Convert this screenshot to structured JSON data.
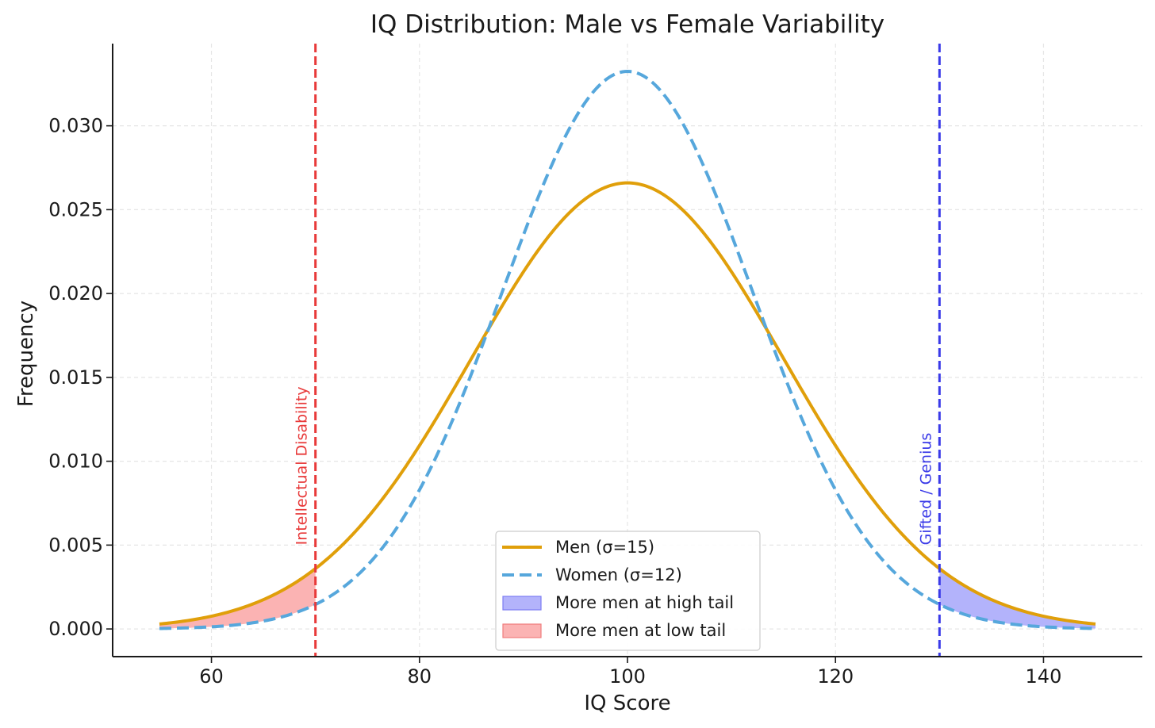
{
  "chart_data": {
    "type": "line",
    "title": "IQ Distribution: Male vs Female Variability",
    "xlabel": "IQ Score",
    "ylabel": "Frequency",
    "xlim": [
      50.5,
      149.5
    ],
    "ylim": [
      -0.00165,
      0.0349
    ],
    "x_range": [
      55,
      145
    ],
    "xticks": [
      60,
      80,
      100,
      120,
      140
    ],
    "xtick_labels": [
      "60",
      "80",
      "100",
      "120",
      "140"
    ],
    "yticks": [
      0.0,
      0.005,
      0.01,
      0.015,
      0.02,
      0.025,
      0.03
    ],
    "ytick_labels": [
      "0.000",
      "0.005",
      "0.010",
      "0.015",
      "0.020",
      "0.025",
      "0.030"
    ],
    "grid": true,
    "series": [
      {
        "name": "Men (σ=15)",
        "distribution": "normal",
        "mean": 100,
        "std": 15,
        "color": "#E09F0A",
        "style": "solid"
      },
      {
        "name": "Women (σ=12)",
        "distribution": "normal",
        "mean": 100,
        "std": 12,
        "color": "#56A7DC",
        "style": "dashed"
      }
    ],
    "shaded_regions": [
      {
        "label": "More men at high tail",
        "from": 130,
        "to": 145,
        "color": "#b3b3fb",
        "edge_color": "#7d7df2"
      },
      {
        "label": "More men at low tail",
        "from": 55,
        "to": 70,
        "color": "#fbb3b3",
        "edge_color": "#f07d7d"
      }
    ],
    "vertical_lines": [
      {
        "x": 70,
        "label": "Intellectual Disability",
        "color": "#E83A3A"
      },
      {
        "x": 130,
        "label": "Gifted / Genius",
        "color": "#3A3AE8"
      }
    ],
    "legend": {
      "position": "lower center",
      "entries": [
        "Men (σ=15)",
        "Women (σ=12)",
        "More men at high tail",
        "More men at low tail"
      ]
    }
  }
}
